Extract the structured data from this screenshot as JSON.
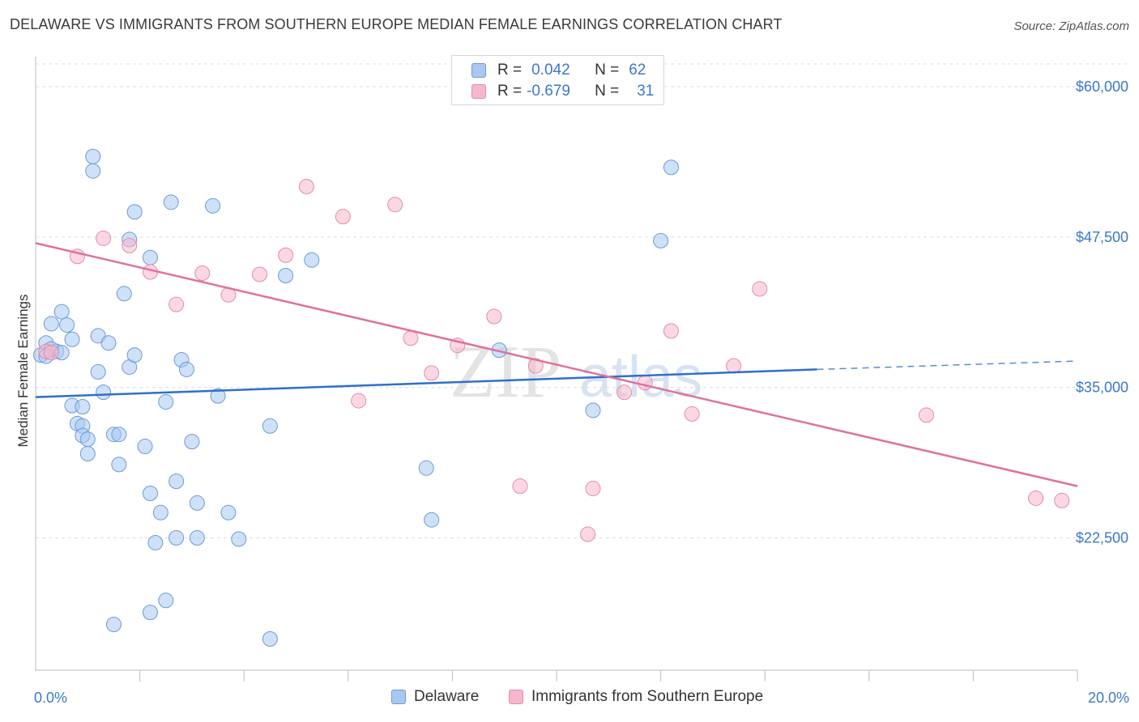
{
  "title": "DELAWARE VS IMMIGRANTS FROM SOUTHERN EUROPE MEDIAN FEMALE EARNINGS CORRELATION CHART",
  "source": "Source: ZipAtlas.com",
  "watermark": {
    "zip": "ZIP",
    "atlas": "atlas"
  },
  "legend_box": {
    "rows": [
      {
        "r_label": "R =",
        "r_value": "0.042",
        "n_label": "N =",
        "n_value": "62",
        "color": "#a8c8f0"
      },
      {
        "r_label": "R =",
        "r_value": "-0.679",
        "n_label": "N =",
        "n_value": "31",
        "color": "#f5b8cb"
      }
    ]
  },
  "chart_data": {
    "type": "scatter",
    "title": "DELAWARE VS IMMIGRANTS FROM SOUTHERN EUROPE MEDIAN FEMALE EARNINGS CORRELATION CHART",
    "xlabel": "",
    "ylabel": "Median Female Earnings",
    "xlim": [
      0,
      20
    ],
    "ylim": [
      11500,
      62500
    ],
    "x_tick_labels": [
      "0.0%",
      "20.0%"
    ],
    "y_ticks": [
      22500,
      35000,
      47500,
      60000
    ],
    "y_tick_labels": [
      "$22,500",
      "$35,000",
      "$47,500",
      "$60,000"
    ],
    "grid": "horizontal dashed",
    "legend_position": "bottom",
    "series": [
      {
        "name": "Delaware",
        "color": "#a8c8f0",
        "stroke": "#6b9ad8",
        "line_color": "#2f6fcc",
        "trend": {
          "x0": 0,
          "y0": 34200,
          "x1": 15.0,
          "y1": 36500,
          "dash_to_x": 20,
          "dash_to_y": 37200
        },
        "points": [
          [
            0.1,
            37700
          ],
          [
            0.2,
            38700
          ],
          [
            0.3,
            40300
          ],
          [
            0.4,
            38000
          ],
          [
            0.5,
            41300
          ],
          [
            0.6,
            40200
          ],
          [
            0.7,
            39000
          ],
          [
            0.8,
            32000
          ],
          [
            0.7,
            33500
          ],
          [
            0.9,
            33400
          ],
          [
            0.9,
            31800
          ],
          [
            0.9,
            31000
          ],
          [
            1.0,
            29500
          ],
          [
            1.0,
            30700
          ],
          [
            1.1,
            54200
          ],
          [
            1.1,
            53000
          ],
          [
            1.2,
            39300
          ],
          [
            1.2,
            36300
          ],
          [
            1.3,
            34600
          ],
          [
            1.4,
            38700
          ],
          [
            1.5,
            31100
          ],
          [
            1.6,
            31100
          ],
          [
            1.6,
            28600
          ],
          [
            1.7,
            42800
          ],
          [
            1.8,
            47300
          ],
          [
            1.8,
            36700
          ],
          [
            1.9,
            49600
          ],
          [
            1.9,
            37700
          ],
          [
            2.1,
            30100
          ],
          [
            2.2,
            26200
          ],
          [
            2.2,
            45800
          ],
          [
            2.3,
            22100
          ],
          [
            2.4,
            24600
          ],
          [
            2.5,
            33800
          ],
          [
            2.6,
            50400
          ],
          [
            2.7,
            22500
          ],
          [
            2.7,
            27200
          ],
          [
            2.8,
            37300
          ],
          [
            2.9,
            36500
          ],
          [
            3.0,
            30500
          ],
          [
            3.1,
            22500
          ],
          [
            3.1,
            25400
          ],
          [
            3.4,
            50100
          ],
          [
            3.5,
            34300
          ],
          [
            3.7,
            24600
          ],
          [
            3.9,
            22400
          ],
          [
            4.5,
            31800
          ],
          [
            4.5,
            14100
          ],
          [
            4.8,
            44300
          ],
          [
            5.3,
            45600
          ],
          [
            7.5,
            28300
          ],
          [
            7.6,
            24000
          ],
          [
            8.9,
            38100
          ],
          [
            10.7,
            33100
          ],
          [
            12.0,
            47200
          ],
          [
            12.2,
            53300
          ],
          [
            1.5,
            15300
          ],
          [
            2.2,
            16300
          ],
          [
            2.5,
            17300
          ],
          [
            0.3,
            38200
          ],
          [
            0.5,
            37900
          ],
          [
            0.2,
            37600
          ]
        ]
      },
      {
        "name": "Immigrants from Southern Europe",
        "color": "#f5b8cb",
        "stroke": "#e889a8",
        "line_color": "#e0719a",
        "trend": {
          "x0": 0,
          "y0": 47000,
          "x1": 20,
          "y1": 26800
        },
        "points": [
          [
            0.2,
            38000
          ],
          [
            0.3,
            37900
          ],
          [
            0.8,
            45900
          ],
          [
            1.3,
            47400
          ],
          [
            1.8,
            46800
          ],
          [
            2.2,
            44600
          ],
          [
            2.7,
            41900
          ],
          [
            3.2,
            44500
          ],
          [
            3.7,
            42700
          ],
          [
            4.3,
            44400
          ],
          [
            4.8,
            46000
          ],
          [
            5.2,
            51700
          ],
          [
            5.9,
            49200
          ],
          [
            6.2,
            33900
          ],
          [
            6.9,
            50200
          ],
          [
            7.2,
            39100
          ],
          [
            7.6,
            36200
          ],
          [
            8.1,
            38500
          ],
          [
            8.8,
            40900
          ],
          [
            9.3,
            26800
          ],
          [
            9.6,
            36800
          ],
          [
            10.6,
            22800
          ],
          [
            10.7,
            26600
          ],
          [
            11.3,
            34600
          ],
          [
            11.7,
            35400
          ],
          [
            12.2,
            39700
          ],
          [
            12.6,
            32800
          ],
          [
            13.4,
            36800
          ],
          [
            13.9,
            43200
          ],
          [
            17.1,
            32700
          ],
          [
            19.2,
            25800
          ]
        ]
      }
    ],
    "extra_points": [
      {
        "series": 1,
        "x": 19.7,
        "y": 25600
      }
    ]
  }
}
